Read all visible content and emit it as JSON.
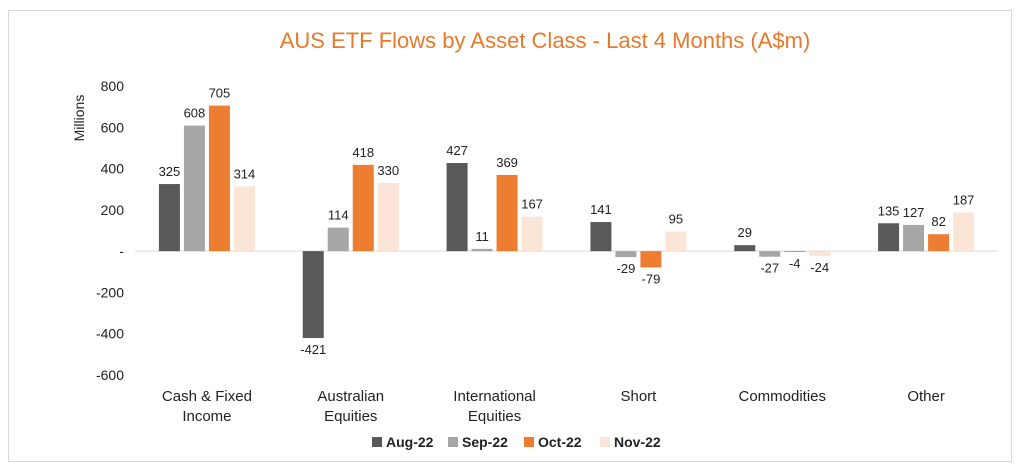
{
  "chart_data": {
    "type": "bar",
    "title": "AUS ETF Flows by Asset Class - Last 4 Months (A$m)",
    "ylabel": "Millions",
    "xlabel": "",
    "ylim": [
      -600,
      800
    ],
    "yticks": [
      800,
      600,
      400,
      200,
      0,
      -200,
      -400,
      -600
    ],
    "ytick_labels": [
      "800",
      "600",
      "400",
      "200",
      "-",
      "-200",
      "-400",
      "-600"
    ],
    "categories": [
      [
        "Cash & Fixed",
        "Income"
      ],
      [
        "Australian",
        "Equities"
      ],
      [
        "International",
        "Equities"
      ],
      [
        "Short"
      ],
      [
        "Commodities"
      ],
      [
        "Other"
      ]
    ],
    "series": [
      {
        "name": "Aug-22",
        "color": "#595959",
        "values": [
          325,
          -421,
          427,
          141,
          29,
          135
        ]
      },
      {
        "name": "Sep-22",
        "color": "#a6a6a6",
        "values": [
          608,
          114,
          11,
          -29,
          -27,
          127
        ]
      },
      {
        "name": "Oct-22",
        "color": "#ed7d31",
        "values": [
          705,
          418,
          369,
          -79,
          -4,
          82
        ]
      },
      {
        "name": "Nov-22",
        "color": "#fbe5d6",
        "values": [
          314,
          330,
          167,
          95,
          -24,
          187
        ]
      }
    ],
    "grid": false,
    "legend": "bottom"
  }
}
